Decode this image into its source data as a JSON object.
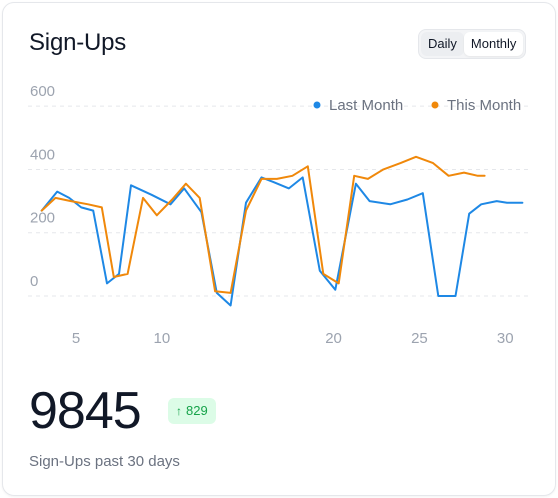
{
  "card": {
    "title": "Sign-Ups",
    "toggle": {
      "options": [
        "Daily",
        "Monthly"
      ],
      "selected": "Daily"
    },
    "big_value": "9845",
    "badge": {
      "arrow": "↑",
      "value": "829",
      "color": "#16a34a",
      "background": "#dcfce7"
    },
    "caption": "Sign-Ups past 30 days"
  },
  "chart_data": {
    "type": "line",
    "title": "",
    "xlabel": "",
    "ylabel": "",
    "x_ticks": [
      5,
      10,
      20,
      25,
      30
    ],
    "y_ticks": [
      0,
      200,
      400,
      600
    ],
    "xlim": [
      2.2,
      31.5
    ],
    "ylim": [
      -60,
      610
    ],
    "grid": true,
    "legend": "top-right",
    "series": [
      {
        "name": "Last Month",
        "color": "#1e88e5",
        "x": [
          3,
          3.9,
          4.6,
          5.3,
          6,
          6.8,
          7.5,
          8.2,
          9.4,
          10.5,
          11.3,
          12.3,
          13.2,
          14,
          14.9,
          15.8,
          16.5,
          17.4,
          18.2,
          19.2,
          20.1,
          21.3,
          22.1,
          23.3,
          24.3,
          25.2,
          26.1,
          27.1,
          27.9,
          28.6,
          29.5,
          30.1,
          31
        ],
        "y": [
          270,
          330,
          310,
          280,
          270,
          40,
          70,
          350,
          320,
          290,
          340,
          265,
          10,
          -30,
          295,
          375,
          360,
          340,
          375,
          80,
          20,
          355,
          300,
          290,
          305,
          325,
          0,
          0,
          260,
          290,
          300,
          295,
          295
        ]
      },
      {
        "name": "This Month",
        "color": "#f0880a",
        "x": [
          3,
          3.8,
          4.7,
          5.7,
          6.5,
          7.2,
          8,
          8.9,
          9.7,
          10.6,
          11.4,
          12.2,
          13.1,
          14,
          14.9,
          15.8,
          16.7,
          17.6,
          18.5,
          19.4,
          20.3,
          21.2,
          22,
          22.9,
          23.9,
          24.8,
          25.8,
          26.7,
          27.6,
          28.4,
          28.8
        ],
        "y": [
          270,
          310,
          300,
          290,
          280,
          60,
          70,
          310,
          255,
          305,
          355,
          310,
          15,
          10,
          270,
          370,
          370,
          380,
          410,
          70,
          40,
          380,
          370,
          400,
          420,
          440,
          420,
          380,
          390,
          380,
          380
        ]
      }
    ]
  }
}
